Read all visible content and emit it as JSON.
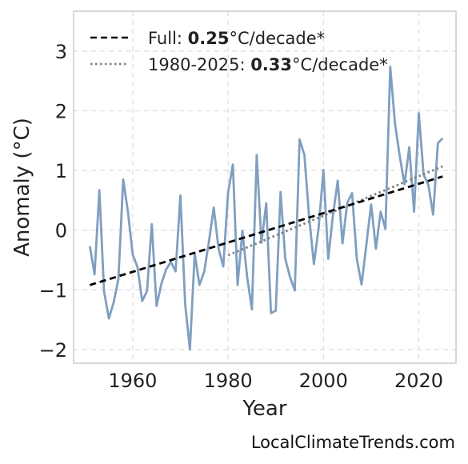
{
  "chart_data": {
    "type": "line",
    "xlabel": "Year",
    "ylabel": "Anomaly (°C)",
    "xlim": [
      1947.6,
      2027.8
    ],
    "ylim": [
      -2.23,
      3.67
    ],
    "x_ticks": [
      1960,
      1980,
      2000,
      2020
    ],
    "y_ticks": [
      -2,
      -1,
      0,
      1,
      2,
      3
    ],
    "x_tick_labels": [
      "1960",
      "1980",
      "2000",
      "2020"
    ],
    "y_tick_labels": [
      "−2",
      "−1",
      "0",
      "1",
      "2",
      "3"
    ],
    "grid": true,
    "legend_position": "top-left",
    "colors": {
      "series": "#7f9fc0",
      "full_trend": "#000000",
      "recent_trend": "#7f7f7f"
    },
    "series": [
      {
        "values_x": [
          1951,
          1952,
          1953,
          1954,
          1955,
          1956,
          1957,
          1958,
          1959,
          1960,
          1961,
          1962,
          1963,
          1964,
          1965,
          1966,
          1967,
          1968,
          1969,
          1970,
          1971,
          1972,
          1973,
          1974,
          1975,
          1976,
          1977,
          1978,
          1979,
          1980,
          1981,
          1982,
          1983,
          1984,
          1985,
          1986,
          1987,
          1988,
          1989,
          1990,
          1991,
          1992,
          1993,
          1994,
          1995,
          1996,
          1997,
          1998,
          1999,
          2000,
          2001,
          2002,
          2003,
          2004,
          2005,
          2006,
          2007,
          2008,
          2009,
          2010,
          2011,
          2012,
          2013,
          2014,
          2015,
          2016,
          2017,
          2018,
          2019,
          2020,
          2021,
          2022,
          2023,
          2024,
          2025
        ],
        "values_y": [
          -0.27,
          -0.74,
          0.67,
          -1.03,
          -1.48,
          -1.21,
          -0.82,
          0.85,
          0.31,
          -0.41,
          -0.62,
          -1.19,
          -1.02,
          0.1,
          -1.27,
          -0.9,
          -0.66,
          -0.53,
          -0.69,
          0.58,
          -1.25,
          -2.0,
          -0.39,
          -0.92,
          -0.69,
          -0.18,
          0.38,
          -0.31,
          -0.61,
          0.63,
          1.1,
          -0.92,
          -0.01,
          -0.78,
          -1.33,
          1.26,
          -0.21,
          0.45,
          -1.39,
          -1.35,
          0.64,
          -0.48,
          -0.79,
          -1.01,
          1.52,
          1.26,
          0.22,
          -0.57,
          0.04,
          1.01,
          -0.48,
          0.25,
          0.83,
          -0.22,
          0.46,
          0.62,
          -0.48,
          -0.91,
          -0.24,
          0.43,
          -0.31,
          0.31,
          0.02,
          2.74,
          1.79,
          1.24,
          0.77,
          1.39,
          0.31,
          1.96,
          0.93,
          0.76,
          0.26,
          1.46,
          1.54
        ]
      }
    ],
    "trend_full": {
      "x": [
        1951,
        2025
      ],
      "y": [
        -0.92,
        0.9
      ],
      "label_prefix": "Full: ",
      "label_value": "0.25",
      "label_suffix": "°C/decade*"
    },
    "trend_recent": {
      "x": [
        1980,
        2025
      ],
      "y": [
        -0.42,
        1.07
      ],
      "label_prefix": "1980-2025: ",
      "label_value": "0.33",
      "label_suffix": "°C/decade*"
    },
    "credit": "LocalClimateTrends.com"
  }
}
